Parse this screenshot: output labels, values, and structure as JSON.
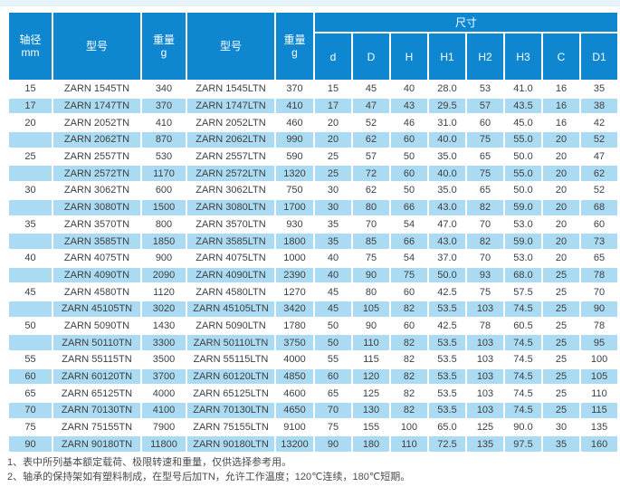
{
  "colors": {
    "header_blue": "#0e87d0",
    "row_alt_blue": "#abdbf3",
    "top_strip": "#e7f3fb",
    "body_text": "#3f3f3f",
    "note_text": "#4b4b4b"
  },
  "table": {
    "header": {
      "shaft_line1": "轴径",
      "shaft_line2": "mm",
      "model": "型号",
      "weight_line1": "重量",
      "weight_line2": "g",
      "size_group": "尺寸",
      "dim_cols": [
        "d",
        "D",
        "H",
        "H1",
        "H2",
        "H3",
        "C",
        "D1"
      ]
    },
    "rows": [
      {
        "shaft": "15",
        "model_tn": "ZARN 1545TN",
        "weight_tn": "340",
        "model_ltn": "ZARN 1545LTN",
        "weight_ltn": "370",
        "dims": [
          "15",
          "45",
          "40",
          "28.0",
          "53",
          "41.0",
          "16",
          "35"
        ]
      },
      {
        "shaft": "17",
        "model_tn": "ZARN 1747TN",
        "weight_tn": "370",
        "model_ltn": "ZARN 1747LTN",
        "weight_ltn": "410",
        "dims": [
          "17",
          "47",
          "43",
          "29.5",
          "57",
          "43.5",
          "16",
          "38"
        ]
      },
      {
        "shaft": "20",
        "model_tn": "ZARN 2052TN",
        "weight_tn": "410",
        "model_ltn": "ZARN 2052LTN",
        "weight_ltn": "460",
        "dims": [
          "20",
          "52",
          "46",
          "31.0",
          "60",
          "45.0",
          "16",
          "42"
        ]
      },
      {
        "shaft": "",
        "model_tn": "ZARN 2062TN",
        "weight_tn": "870",
        "model_ltn": "ZARN 2062LTN",
        "weight_ltn": "990",
        "dims": [
          "20",
          "62",
          "60",
          "40.0",
          "75",
          "55.0",
          "20",
          "52"
        ]
      },
      {
        "shaft": "25",
        "model_tn": "ZARN 2557TN",
        "weight_tn": "530",
        "model_ltn": "ZARN 2557LTN",
        "weight_ltn": "590",
        "dims": [
          "25",
          "57",
          "50",
          "35.0",
          "65",
          "50.0",
          "20",
          "47"
        ]
      },
      {
        "shaft": "",
        "model_tn": "ZARN 2572TN",
        "weight_tn": "1170",
        "model_ltn": "ZARN 2572LTN",
        "weight_ltn": "1320",
        "dims": [
          "25",
          "72",
          "60",
          "40.0",
          "75",
          "55.0",
          "20",
          "62"
        ]
      },
      {
        "shaft": "30",
        "model_tn": "ZARN 3062TN",
        "weight_tn": "600",
        "model_ltn": "ZARN 3062LTN",
        "weight_ltn": "750",
        "dims": [
          "30",
          "62",
          "50",
          "35.0",
          "65",
          "50.0",
          "20",
          "52"
        ]
      },
      {
        "shaft": "",
        "model_tn": "ZARN 3080TN",
        "weight_tn": "1500",
        "model_ltn": "ZARN 3080LTN",
        "weight_ltn": "1700",
        "dims": [
          "30",
          "80",
          "66",
          "43.0",
          "82",
          "59.0",
          "20",
          "68"
        ]
      },
      {
        "shaft": "35",
        "model_tn": "ZARN 3570TN",
        "weight_tn": "800",
        "model_ltn": "ZARN 3570LTN",
        "weight_ltn": "930",
        "dims": [
          "35",
          "70",
          "54",
          "47.0",
          "70",
          "53.0",
          "20",
          "60"
        ]
      },
      {
        "shaft": "",
        "model_tn": "ZARN 3585TN",
        "weight_tn": "1850",
        "model_ltn": "ZARN 3585LTN",
        "weight_ltn": "1800",
        "dims": [
          "35",
          "85",
          "66",
          "43.0",
          "82",
          "59.0",
          "20",
          "73"
        ]
      },
      {
        "shaft": "40",
        "model_tn": "ZARN 4075TN",
        "weight_tn": "900",
        "model_ltn": "ZARN 4075LTN",
        "weight_ltn": "1000",
        "dims": [
          "40",
          "75",
          "54",
          "37.0",
          "70",
          "53.0",
          "20",
          "65"
        ]
      },
      {
        "shaft": "",
        "model_tn": "ZARN 4090TN",
        "weight_tn": "2090",
        "model_ltn": "ZARN 4090LTN",
        "weight_ltn": "2390",
        "dims": [
          "40",
          "90",
          "75",
          "50.0",
          "93",
          "68.0",
          "25",
          "78"
        ]
      },
      {
        "shaft": "45",
        "model_tn": "ZARN 4580TN",
        "weight_tn": "1120",
        "model_ltn": "ZARN 4580LTN",
        "weight_ltn": "1270",
        "dims": [
          "45",
          "80",
          "60",
          "42.5",
          "75",
          "57.5",
          "25",
          "70"
        ]
      },
      {
        "shaft": "",
        "model_tn": "ZARN 45105TN",
        "weight_tn": "3020",
        "model_ltn": "ZARN 45105LTN",
        "weight_ltn": "3420",
        "dims": [
          "45",
          "105",
          "82",
          "53.5",
          "103",
          "74.5",
          "25",
          "90"
        ]
      },
      {
        "shaft": "50",
        "model_tn": "ZARN 5090TN",
        "weight_tn": "1430",
        "model_ltn": "ZARN 5090LTN",
        "weight_ltn": "1780",
        "dims": [
          "50",
          "90",
          "60",
          "42.5",
          "78",
          "60.5",
          "25",
          "78"
        ]
      },
      {
        "shaft": "",
        "model_tn": "ZARN 50110TN",
        "weight_tn": "3300",
        "model_ltn": "ZARN 50110LTN",
        "weight_ltn": "3750",
        "dims": [
          "50",
          "110",
          "82",
          "53.5",
          "103",
          "74.5",
          "25",
          "95"
        ]
      },
      {
        "shaft": "55",
        "model_tn": "ZARN 55115TN",
        "weight_tn": "3500",
        "model_ltn": "ZARN 55115LTN",
        "weight_ltn": "4000",
        "dims": [
          "55",
          "115",
          "82",
          "53.5",
          "103",
          "74.5",
          "25",
          "100"
        ]
      },
      {
        "shaft": "60",
        "model_tn": "ZARN 60120TN",
        "weight_tn": "3700",
        "model_ltn": "ZARN 60120LTN",
        "weight_ltn": "4850",
        "dims": [
          "60",
          "120",
          "82",
          "53.5",
          "103",
          "74.5",
          "25",
          "105"
        ]
      },
      {
        "shaft": "65",
        "model_tn": "ZARN 65125TN",
        "weight_tn": "4000",
        "model_ltn": "ZARN 65125LTN",
        "weight_ltn": "4600",
        "dims": [
          "65",
          "125",
          "82",
          "53.5",
          "103",
          "74.5",
          "25",
          "110"
        ]
      },
      {
        "shaft": "70",
        "model_tn": "ZARN 70130TN",
        "weight_tn": "4100",
        "model_ltn": "ZARN 70130LTN",
        "weight_ltn": "4650",
        "dims": [
          "70",
          "130",
          "82",
          "53.5",
          "103",
          "74.5",
          "25",
          "115"
        ]
      },
      {
        "shaft": "75",
        "model_tn": "ZARN 75155TN",
        "weight_tn": "7900",
        "model_ltn": "ZARN 75155LTN",
        "weight_ltn": "9100",
        "dims": [
          "75",
          "155",
          "100",
          "65.0",
          "125",
          "90.0",
          "30",
          "135"
        ]
      },
      {
        "shaft": "90",
        "model_tn": "ZARN 90180TN",
        "weight_tn": "11800",
        "model_ltn": "ZARN 90180LTN",
        "weight_ltn": "13200",
        "dims": [
          "90",
          "180",
          "110",
          "72.5",
          "135",
          "97.5",
          "35",
          "160"
        ]
      }
    ]
  },
  "notes": [
    "1、表中所列基本额定载荷、极限转速和重量，仅供选择参考用。",
    "2、轴承的保持架如有塑料制成，在型号后加TN，允许工作温度；120℃连续，180℃短期。"
  ]
}
